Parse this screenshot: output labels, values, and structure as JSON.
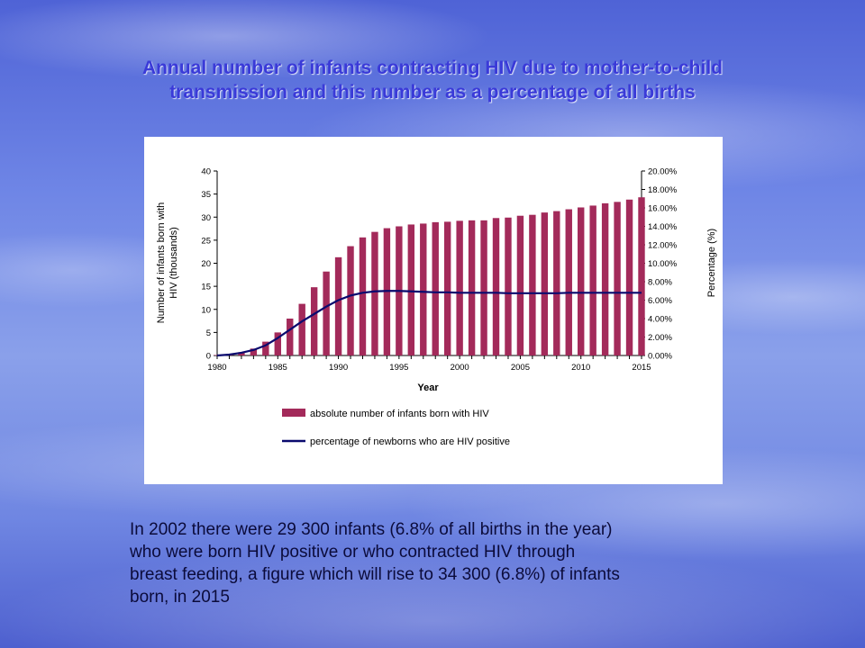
{
  "slide": {
    "title_line1": "Annual number of infants contracting HIV due to mother-to-child",
    "title_line2": "transmission and this number as a percentage of all births",
    "caption_lines": [
      "In 2002 there were 29 300 infants (6.8% of all births in the year)",
      "who were born HIV positive or who contracted HIV through",
      "breast feeding, a figure which will rise to 34 300 (6.8%) of infants",
      "born, in 2015"
    ]
  },
  "colors": {
    "title": "#3a3ad8",
    "bar": "#a32a5a",
    "line": "#0a0a6e",
    "caption": "#0b0b3a"
  },
  "chart_data": {
    "type": "bar",
    "xlabel": "Year",
    "ylabel": "Number of infants born with HIV (thousands)",
    "ylabel_lines": [
      "Number of infants born with",
      "HIV (thousands)"
    ],
    "y2label": "Percentage (%)",
    "ylim": [
      0,
      40
    ],
    "y2lim": [
      0,
      20
    ],
    "yticks": [
      "0",
      "5",
      "10",
      "15",
      "20",
      "25",
      "30",
      "35",
      "40"
    ],
    "y2ticks": [
      "0.00%",
      "2.00%",
      "4.00%",
      "6.00%",
      "8.00%",
      "10.00%",
      "12.00%",
      "14.00%",
      "16.00%",
      "18.00%",
      "20.00%"
    ],
    "xticks": [
      "1980",
      "1985",
      "1990",
      "1995",
      "2000",
      "2005",
      "2010",
      "2015"
    ],
    "legend_position": "bottom",
    "years": [
      1980,
      1981,
      1982,
      1983,
      1984,
      1985,
      1986,
      1987,
      1988,
      1989,
      1990,
      1991,
      1992,
      1993,
      1994,
      1995,
      1996,
      1997,
      1998,
      1999,
      2000,
      2001,
      2002,
      2003,
      2004,
      2005,
      2006,
      2007,
      2008,
      2009,
      2010,
      2011,
      2012,
      2013,
      2014,
      2015
    ],
    "series": [
      {
        "name": "absolute number of infants born with HIV",
        "type": "bar",
        "axis": "left",
        "values": [
          0.1,
          0.3,
          0.7,
          1.5,
          3.0,
          5.0,
          8.0,
          11.2,
          14.8,
          18.2,
          21.3,
          23.7,
          25.6,
          26.8,
          27.6,
          28.0,
          28.4,
          28.6,
          28.9,
          29.0,
          29.2,
          29.3,
          29.3,
          29.8,
          29.9,
          30.3,
          30.5,
          31.0,
          31.3,
          31.7,
          32.1,
          32.5,
          33.0,
          33.3,
          33.8,
          34.3
        ]
      },
      {
        "name": "percentage of newborns who are HIV positive",
        "type": "line",
        "axis": "right",
        "values": [
          0.0,
          0.1,
          0.3,
          0.6,
          1.1,
          1.9,
          2.8,
          3.7,
          4.5,
          5.3,
          6.0,
          6.5,
          6.8,
          6.95,
          7.0,
          7.0,
          6.95,
          6.9,
          6.85,
          6.85,
          6.8,
          6.8,
          6.8,
          6.8,
          6.75,
          6.75,
          6.75,
          6.75,
          6.75,
          6.8,
          6.8,
          6.8,
          6.8,
          6.8,
          6.8,
          6.8
        ]
      }
    ]
  }
}
